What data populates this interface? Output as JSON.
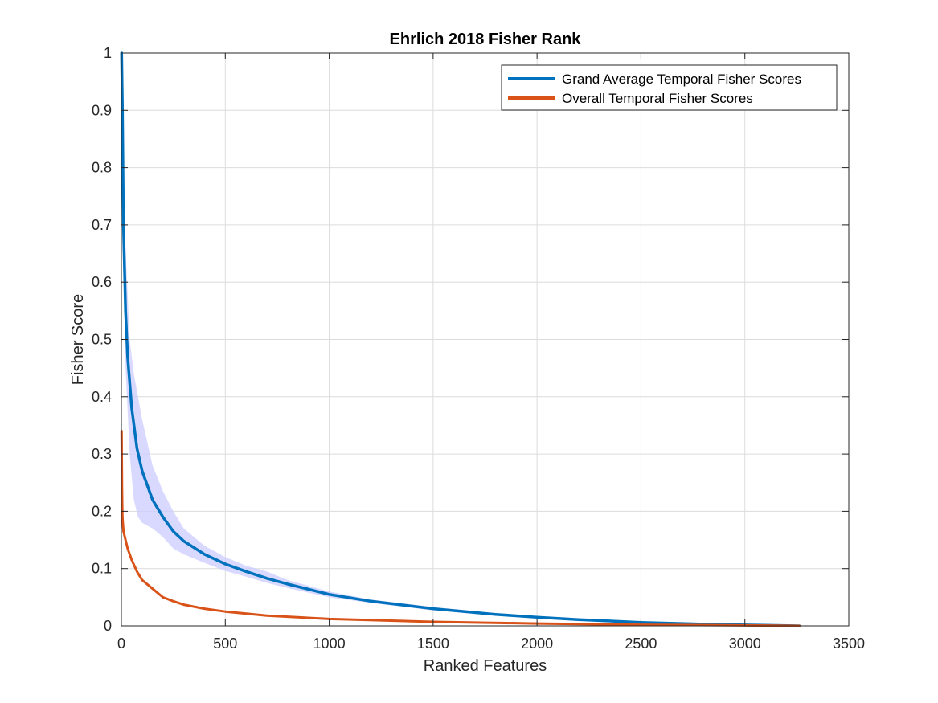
{
  "chart_data": {
    "type": "line",
    "title": "Ehrlich 2018 Fisher Rank",
    "xlabel": "Ranked Features",
    "ylabel": "Fisher Score",
    "xlim": [
      0,
      3500
    ],
    "ylim": [
      0,
      1
    ],
    "grid": true,
    "legend_position": "top-right",
    "x_ticks": [
      0,
      500,
      1000,
      1500,
      2000,
      2500,
      3000,
      3500
    ],
    "y_ticks": [
      0,
      0.1,
      0.2,
      0.3,
      0.4,
      0.5,
      0.6,
      0.7,
      0.8,
      0.9,
      1
    ],
    "series": [
      {
        "name": "Grand Average Temporal Fisher Scores",
        "color": "#0072BD",
        "x": [
          1,
          5,
          10,
          20,
          30,
          50,
          75,
          100,
          150,
          200,
          250,
          300,
          400,
          500,
          600,
          700,
          800,
          1000,
          1200,
          1500,
          1800,
          2000,
          2200,
          2500,
          2800,
          3000,
          3262
        ],
        "y": [
          1.0,
          0.9,
          0.7,
          0.55,
          0.47,
          0.38,
          0.31,
          0.27,
          0.22,
          0.19,
          0.165,
          0.148,
          0.125,
          0.108,
          0.095,
          0.083,
          0.073,
          0.055,
          0.043,
          0.03,
          0.02,
          0.015,
          0.011,
          0.006,
          0.003,
          0.0015,
          0.0
        ]
      },
      {
        "name": "Overall Temporal Fisher Scores",
        "color": "#D95319",
        "x": [
          1,
          3,
          5,
          10,
          20,
          30,
          50,
          75,
          100,
          150,
          200,
          250,
          300,
          400,
          500,
          700,
          1000,
          1500,
          2000,
          2500,
          3000,
          3262
        ],
        "y": [
          0.34,
          0.24,
          0.19,
          0.165,
          0.15,
          0.135,
          0.115,
          0.095,
          0.08,
          0.065,
          0.05,
          0.043,
          0.037,
          0.03,
          0.025,
          0.018,
          0.012,
          0.007,
          0.004,
          0.002,
          0.0008,
          0.0
        ]
      }
    ],
    "shaded_band": {
      "color": "#ccccff",
      "x": [
        1,
        10,
        20,
        40,
        60,
        80,
        100,
        150,
        200,
        250,
        300,
        400,
        500,
        600,
        700,
        800,
        1000,
        1200,
        1500,
        1800,
        2000,
        2200,
        2500,
        2800,
        3000,
        3262
      ],
      "upper": [
        1.0,
        0.78,
        0.66,
        0.5,
        0.44,
        0.4,
        0.36,
        0.28,
        0.235,
        0.2,
        0.17,
        0.14,
        0.12,
        0.105,
        0.095,
        0.08,
        0.06,
        0.046,
        0.033,
        0.022,
        0.017,
        0.012,
        0.007,
        0.0035,
        0.002,
        0.0
      ],
      "lower": [
        1.0,
        0.62,
        0.45,
        0.3,
        0.22,
        0.19,
        0.18,
        0.17,
        0.155,
        0.135,
        0.125,
        0.11,
        0.096,
        0.086,
        0.075,
        0.066,
        0.05,
        0.04,
        0.027,
        0.018,
        0.013,
        0.01,
        0.005,
        0.0025,
        0.001,
        0.0
      ]
    }
  }
}
